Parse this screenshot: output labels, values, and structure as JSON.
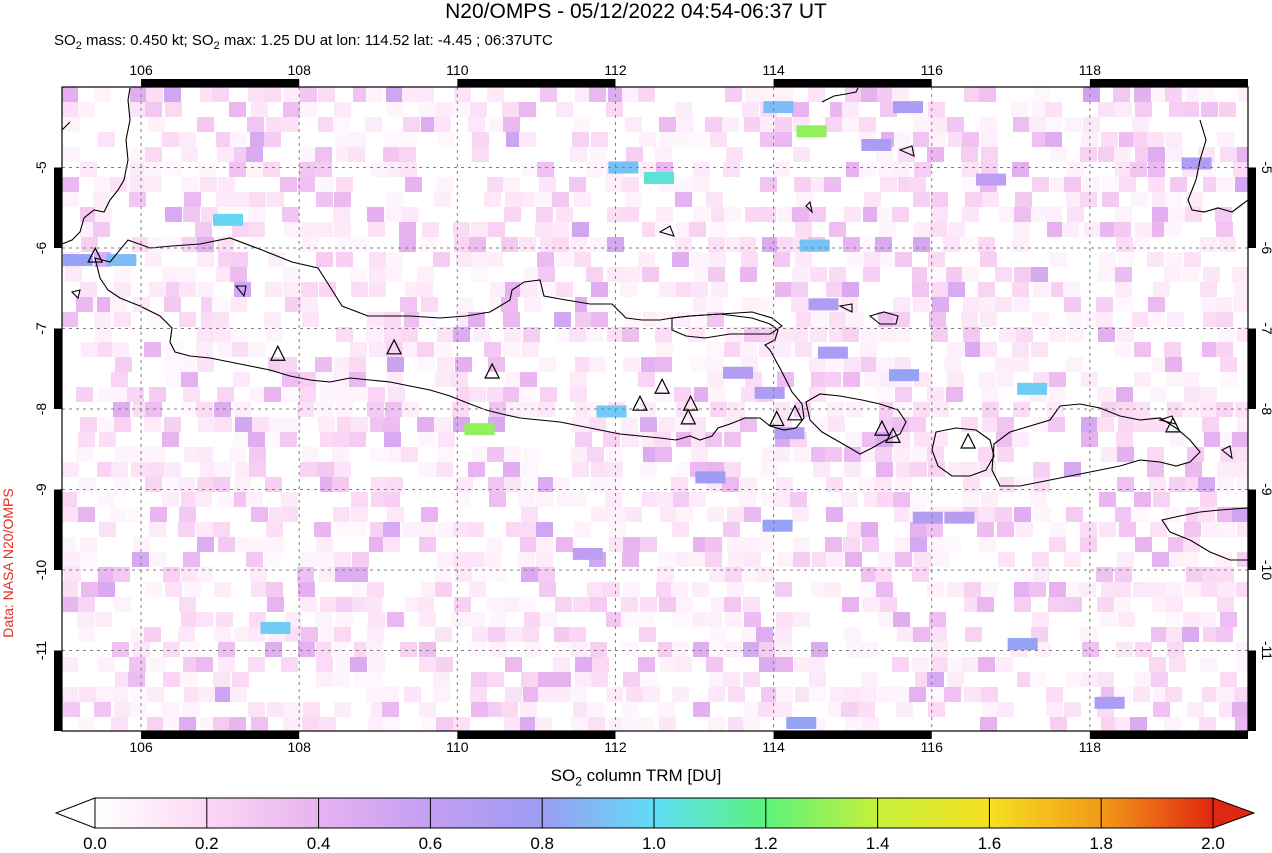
{
  "title": "N20/OMPS - 05/12/2022 04:54-06:37 UT",
  "subtitle_parts": {
    "a": "SO",
    "a_sub": "2",
    "b": " mass: 0.450 kt; SO",
    "b_sub": "2",
    "c": " max: 1.25 DU at lon: 114.52 lat: -4.45 ; 06:37UTC"
  },
  "credit": "Data: NASA N20/OMPS",
  "map": {
    "lon_range": [
      105.0,
      120.0
    ],
    "lat_range": [
      -12.0,
      -4.0
    ],
    "x_ticks": [
      "106",
      "108",
      "110",
      "112",
      "114",
      "116",
      "118"
    ],
    "y_ticks": [
      "-5",
      "-6",
      "-7",
      "-8",
      "-9",
      "-10",
      "-11"
    ],
    "x_tick_values": [
      106,
      108,
      110,
      112,
      114,
      116,
      118
    ],
    "y_tick_values": [
      -5,
      -6,
      -7,
      -8,
      -9,
      -10,
      -11
    ],
    "volcano_icon": "triangle-outline-icon",
    "volcanoes": [
      [
        105.42,
        -6.1
      ],
      [
        107.73,
        -7.32
      ],
      [
        109.2,
        -7.24
      ],
      [
        110.44,
        -7.54
      ],
      [
        112.31,
        -7.94
      ],
      [
        112.59,
        -7.73
      ],
      [
        112.95,
        -7.94
      ],
      [
        112.92,
        -8.11
      ],
      [
        114.04,
        -8.13
      ],
      [
        114.27,
        -8.06
      ],
      [
        115.37,
        -8.25
      ],
      [
        115.51,
        -8.34
      ],
      [
        116.46,
        -8.41
      ],
      [
        119.05,
        -8.21
      ]
    ],
    "so2_cells": [
      {
        "lon": 114.48,
        "lat": -4.55,
        "du": 1.3
      },
      {
        "lon": 112.55,
        "lat": -5.13,
        "du": 1.05
      },
      {
        "lon": 112.1,
        "lat": -5.0,
        "du": 0.92
      },
      {
        "lon": 114.06,
        "lat": -4.25,
        "du": 0.9
      },
      {
        "lon": 114.52,
        "lat": -5.97,
        "du": 0.92
      },
      {
        "lon": 110.28,
        "lat": -8.25,
        "du": 1.3
      },
      {
        "lon": 111.95,
        "lat": -8.03,
        "du": 0.95
      },
      {
        "lon": 117.27,
        "lat": -7.75,
        "du": 0.95
      },
      {
        "lon": 107.1,
        "lat": -5.65,
        "du": 0.98
      },
      {
        "lon": 107.7,
        "lat": -10.72,
        "du": 0.95
      },
      {
        "lon": 114.63,
        "lat": -6.7,
        "du": 0.7
      },
      {
        "lon": 114.75,
        "lat": -7.3,
        "du": 0.72
      },
      {
        "lon": 115.65,
        "lat": -7.58,
        "du": 0.82
      },
      {
        "lon": 115.3,
        "lat": -4.72,
        "du": 0.72
      },
      {
        "lon": 115.95,
        "lat": -9.35,
        "du": 0.68
      },
      {
        "lon": 116.35,
        "lat": -9.35,
        "du": 0.66
      },
      {
        "lon": 117.15,
        "lat": -10.92,
        "du": 0.82
      },
      {
        "lon": 114.05,
        "lat": -9.45,
        "du": 0.82
      },
      {
        "lon": 114.35,
        "lat": -11.9,
        "du": 0.82
      },
      {
        "lon": 113.2,
        "lat": -8.85,
        "du": 0.8
      },
      {
        "lon": 113.55,
        "lat": -7.55,
        "du": 0.68
      },
      {
        "lon": 111.65,
        "lat": -9.8,
        "du": 0.62
      },
      {
        "lon": 118.25,
        "lat": -11.65,
        "du": 0.72
      },
      {
        "lon": 113.95,
        "lat": -7.8,
        "du": 0.72
      },
      {
        "lon": 116.75,
        "lat": -5.15,
        "du": 0.62
      },
      {
        "lon": 119.35,
        "lat": -4.95,
        "du": 0.7
      },
      {
        "lon": 105.2,
        "lat": -6.15,
        "du": 0.82
      },
      {
        "lon": 105.75,
        "lat": -6.15,
        "du": 0.9
      },
      {
        "lon": 115.7,
        "lat": -4.25,
        "du": 0.72
      },
      {
        "lon": 114.2,
        "lat": -8.3,
        "du": 0.68
      }
    ]
  },
  "colorbar": {
    "label_main": "SO",
    "label_sub": "2",
    "label_rest": " column TRM [DU]",
    "ticks": [
      "0.0",
      "0.2",
      "0.4",
      "0.6",
      "0.8",
      "1.0",
      "1.2",
      "1.4",
      "1.6",
      "1.8",
      "2.0"
    ],
    "min": 0.0,
    "max": 2.0,
    "colors": [
      "#ffffff",
      "#fbd8f4",
      "#e8b2f0",
      "#c29ef2",
      "#9c9cf3",
      "#5fdcf6",
      "#5cf27c",
      "#c6f03a",
      "#f5e020",
      "#f29a18",
      "#e02810"
    ]
  }
}
